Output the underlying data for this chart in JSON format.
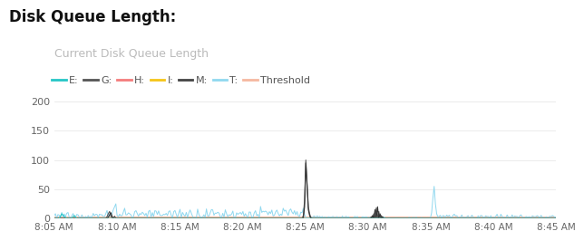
{
  "title": "Disk Queue Length:",
  "subtitle": "Current Disk Queue Length",
  "title_fontsize": 12,
  "subtitle_fontsize": 9,
  "title_color": "#111111",
  "subtitle_color": "#bbbbbb",
  "background_color": "#ffffff",
  "ylim": [
    0,
    215
  ],
  "yticks": [
    0,
    50,
    100,
    150,
    200
  ],
  "legend_entries": [
    "E:",
    "G:",
    "H:",
    "I:",
    "M:",
    "T:",
    "Threshold"
  ],
  "legend_colors": [
    "#26c6c6",
    "#555555",
    "#f47c7c",
    "#f5c518",
    "#444444",
    "#90d8ef",
    "#f5b8a0"
  ],
  "series_colors": {
    "E": "#26c6c6",
    "G": "#555555",
    "H": "#f47c7c",
    "I": "#f5c518",
    "M": "#333333",
    "T": "#90d8ef",
    "Threshold": "#f5b8a0"
  },
  "x_tick_labels": [
    "8:05 AM",
    "8:10 AM",
    "8:15 AM",
    "8:20 AM",
    "8:25 AM",
    "8:30 AM",
    "8:35 AM",
    "8:40 AM",
    "8:45 AM"
  ]
}
